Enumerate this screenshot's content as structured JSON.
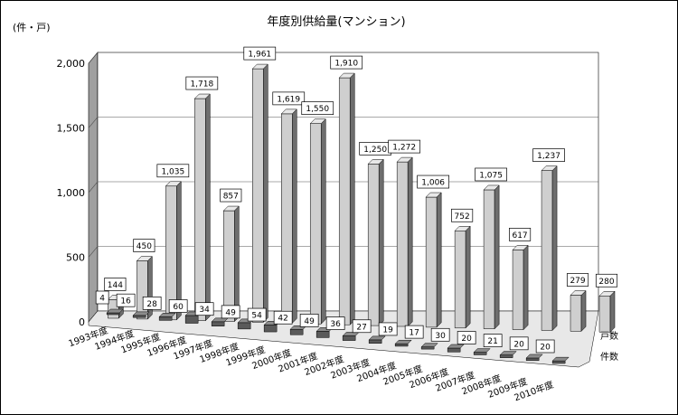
{
  "chart_data": {
    "type": "bar",
    "title": "年度別供給量(マンション)",
    "unit_label": "(件・戸)",
    "yticks": [
      "0",
      "500",
      "1,000",
      "1,500",
      "2,000"
    ],
    "ylim": [
      0,
      2000
    ],
    "categories": [
      "1993年度",
      "1994年度",
      "1995年度",
      "1996年度",
      "1997年度",
      "1998年度",
      "1999年度",
      "2000年度",
      "2001年度",
      "2002年度",
      "2003年度",
      "2004年度",
      "2005年度",
      "2006年度",
      "2007年度",
      "2008年度",
      "2009年度",
      "2010年度"
    ],
    "series": [
      {
        "name": "戸数",
        "values": [
          144,
          450,
          1035,
          1718,
          857,
          1961,
          1619,
          1550,
          1910,
          1250,
          1272,
          1006,
          752,
          1075,
          617,
          1237,
          279,
          280
        ],
        "labels": [
          "144",
          "450",
          "1,035",
          "1,718",
          "857",
          "1,961",
          "1,619",
          "1,550",
          "1,910",
          "1,250",
          "1,272",
          "1,006",
          "752",
          "1,075",
          "617",
          "1,237",
          "279",
          "280"
        ],
        "color": "#c8c8c8"
      },
      {
        "name": "件数",
        "values": [
          4,
          16,
          28,
          60,
          34,
          49,
          54,
          42,
          49,
          36,
          27,
          19,
          17,
          30,
          20,
          21,
          20,
          20
        ],
        "labels": [
          "4",
          "16",
          "28",
          "60",
          "34",
          "49",
          "54",
          "42",
          "49",
          "36",
          "27",
          "19",
          "17",
          "30",
          "20",
          "21",
          "20",
          "20"
        ],
        "color": "#666666"
      }
    ],
    "grid": true,
    "legend": "right-of-depth-axis"
  }
}
